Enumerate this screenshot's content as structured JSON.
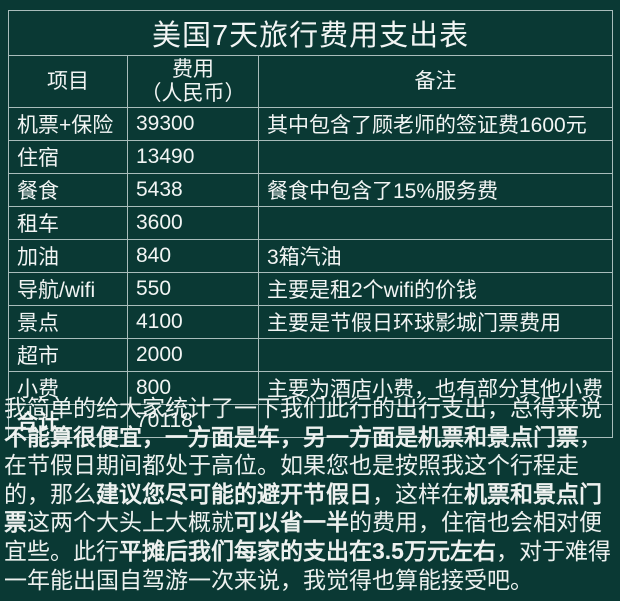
{
  "page": {
    "background_color": "#0a3934",
    "border_color": "#a9bdbb",
    "text_color": "#f2f5f4"
  },
  "table": {
    "title": "美国7天旅行费用支出表",
    "headers": {
      "item": "项目",
      "cost_line1": "费用",
      "cost_line2": "（人民币）",
      "note": "备注"
    },
    "rows": [
      {
        "item": "机票+保险",
        "cost": "39300",
        "note": "其中包含了顾老师的签证费1600元"
      },
      {
        "item": "住宿",
        "cost": "13490",
        "note": ""
      },
      {
        "item": "餐食",
        "cost": "5438",
        "note": "餐食中包含了15%服务费"
      },
      {
        "item": "租车",
        "cost": "3600",
        "note": ""
      },
      {
        "item": "加油",
        "cost": "840",
        "note": "3箱汽油"
      },
      {
        "item": "导航/wifi",
        "cost": "550",
        "note": "主要是租2个wifi的价钱"
      },
      {
        "item": "景点",
        "cost": "4100",
        "note": "主要是节假日环球影城门票费用"
      },
      {
        "item": "超市",
        "cost": "2000",
        "note": ""
      },
      {
        "item": "小费",
        "cost": "800",
        "note": "主要为酒店小费，也有部分其他小费"
      }
    ],
    "total": {
      "item": "合计",
      "cost": "70118",
      "note": ""
    }
  },
  "summary": {
    "segments": [
      {
        "text": "我简单的给大家统计了一下我们此行的出行支出，总得来说",
        "bold": false
      },
      {
        "text": "不能算很便宜，一方面是车，另一方面是机票和景点门票",
        "bold": true
      },
      {
        "text": "，在节假日期间都处于高位。如果您也是按照我这个行程走的，那么",
        "bold": false
      },
      {
        "text": "建议您尽可能的避开节假日",
        "bold": true
      },
      {
        "text": "，这样在",
        "bold": false
      },
      {
        "text": "机票和景点门票",
        "bold": true
      },
      {
        "text": "这两个大头上大概就",
        "bold": false
      },
      {
        "text": "可以省一半",
        "bold": true
      },
      {
        "text": "的费用，住宿也会相对便宜些。此行",
        "bold": false
      },
      {
        "text": "平摊后我们每家的支出在3.5万元左右",
        "bold": true
      },
      {
        "text": "，对于难得一年能出国自驾游一次来说，我觉得也算能接受吧。",
        "bold": false
      }
    ]
  }
}
